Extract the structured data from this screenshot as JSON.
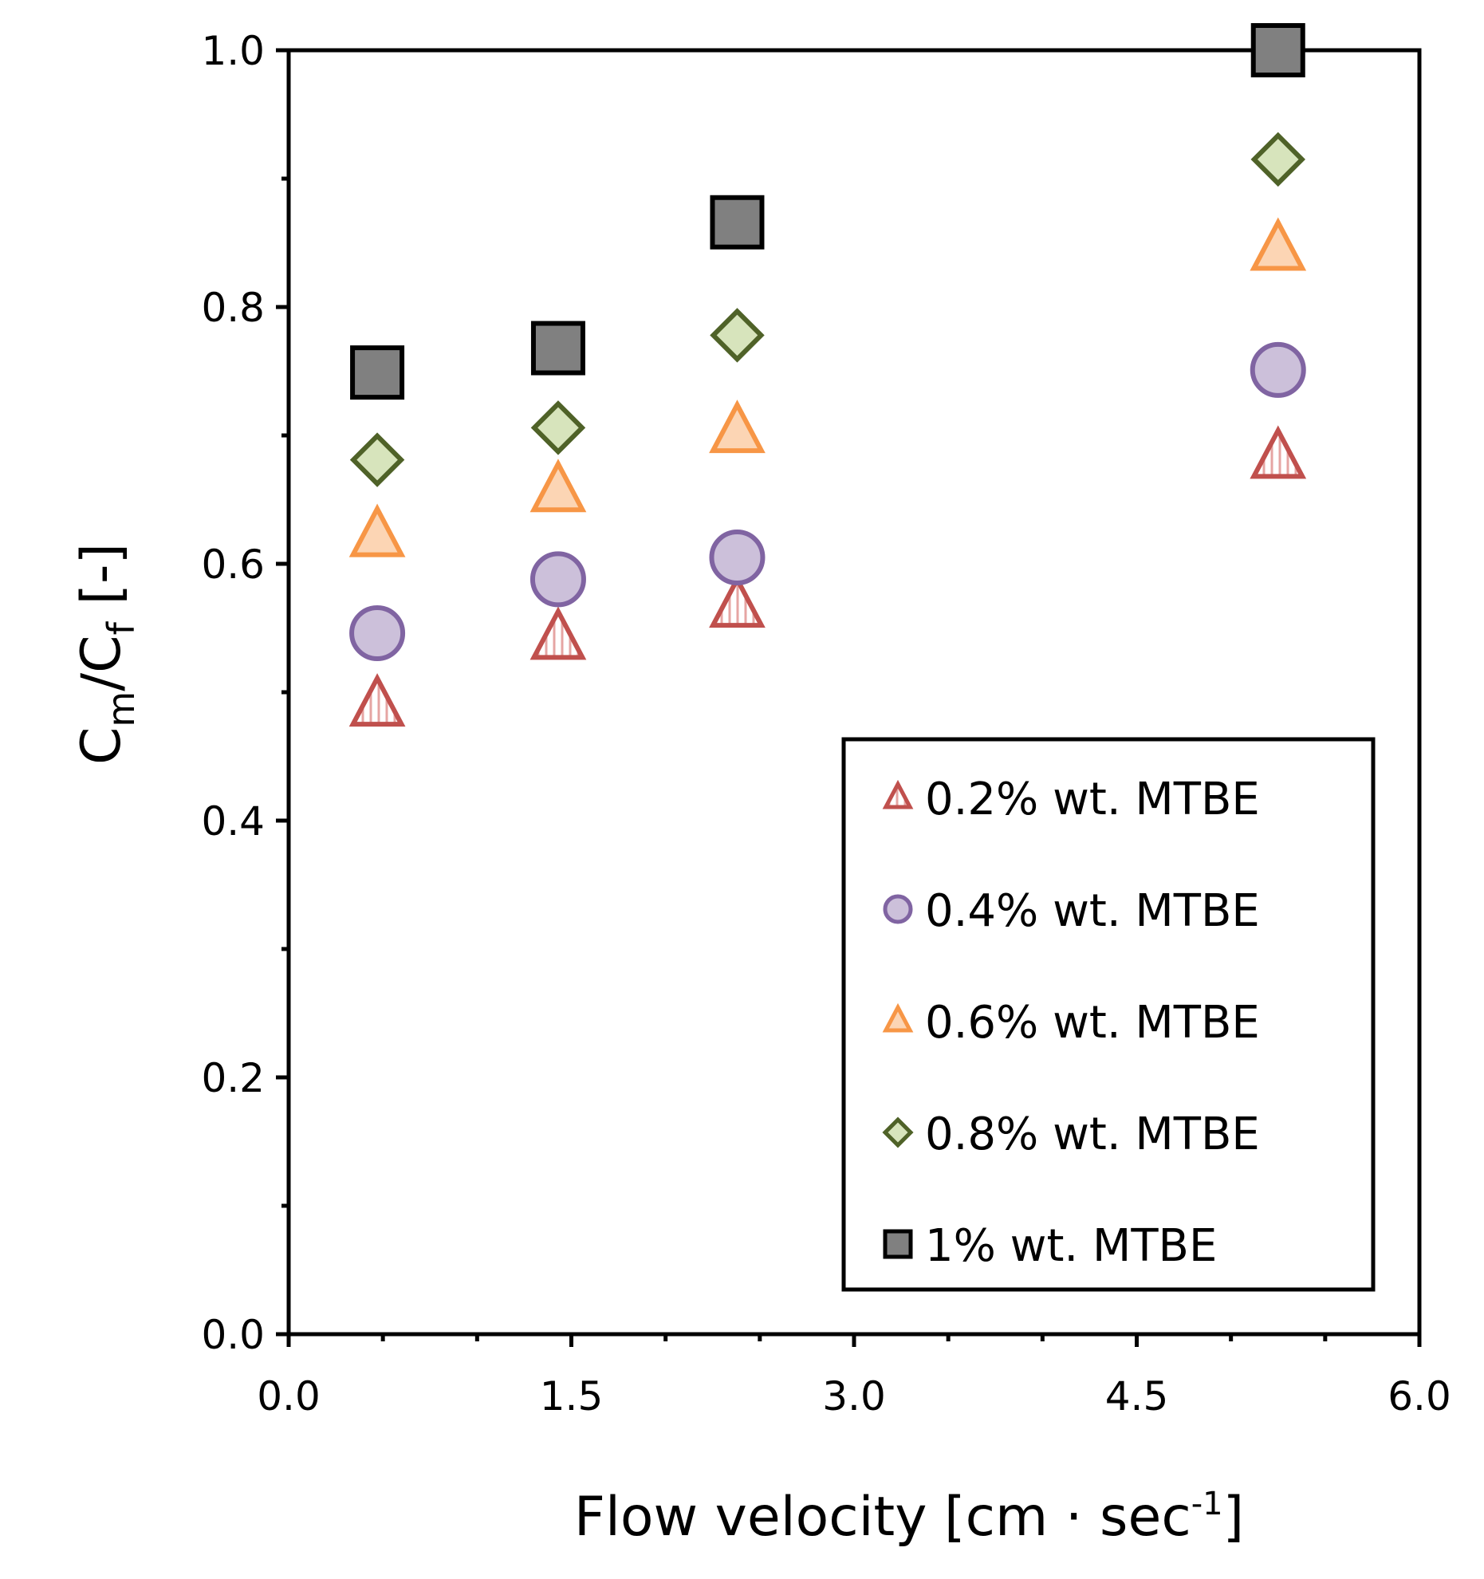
{
  "chart_data": {
    "type": "scatter",
    "title": "",
    "xlabel": "Flow velocity [cm · sec",
    "xlabel_sup": "-1",
    "xlabel_end": "]",
    "ylabel_main": "C",
    "ylabel_sub1": "m",
    "ylabel_slash": "/C",
    "ylabel_sub2": "f",
    "ylabel_end": " [-]",
    "xlim": [
      0,
      6
    ],
    "ylim": [
      0,
      1
    ],
    "xticks": [
      0,
      1.5,
      3,
      4.5,
      6
    ],
    "xtick_labels": [
      "0.0",
      "1.5",
      "3.0",
      "4.5",
      "6.0"
    ],
    "yticks": [
      0,
      0.2,
      0.4,
      0.6,
      0.8,
      1
    ],
    "ytick_labels": [
      "0.0",
      "0.2",
      "0.4",
      "0.6",
      "0.8",
      "1.0"
    ],
    "grid": false,
    "legend_position": "bottom-right",
    "x": [
      0.47,
      1.43,
      2.38,
      5.25
    ],
    "series": [
      {
        "name": "0.2% wt. MTBE",
        "marker": "triangle-hatched",
        "stroke": "#c0504d",
        "fill": "#f2dcdb",
        "values": [
          0.49,
          0.542,
          0.567,
          0.683
        ]
      },
      {
        "name": "0.4% wt. MTBE",
        "marker": "circle",
        "stroke": "#8064a2",
        "fill": "#ccc0da",
        "values": [
          0.546,
          0.588,
          0.605,
          0.751
        ]
      },
      {
        "name": "0.6% wt. MTBE",
        "marker": "triangle",
        "stroke": "#f79646",
        "fill": "#fcd5b4",
        "values": [
          0.622,
          0.657,
          0.703,
          0.845
        ]
      },
      {
        "name": "0.8% wt. MTBE",
        "marker": "diamond",
        "stroke": "#4f6228",
        "fill": "#d7e4bc",
        "values": [
          0.681,
          0.706,
          0.778,
          0.915
        ]
      },
      {
        "name": "1% wt. MTBE",
        "marker": "square",
        "stroke": "#000000",
        "fill": "#808080",
        "values": [
          0.749,
          0.768,
          0.866,
          1.0
        ]
      }
    ]
  }
}
